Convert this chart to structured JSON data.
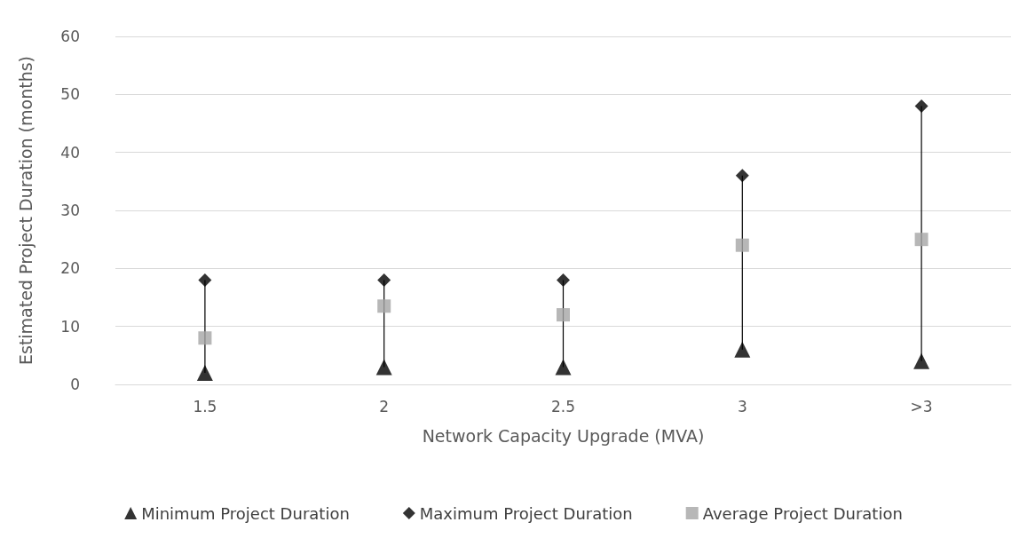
{
  "chart_data": {
    "type": "scatter",
    "xlabel": "Network Capacity Upgrade (MVA)",
    "ylabel": "Estimated Project Duration (months)",
    "categories": [
      "1.5",
      "2",
      "2.5",
      "3",
      ">3"
    ],
    "series": [
      {
        "type": "line",
        "color": "#000000",
        "marker": "none",
        "x": [
          "1.5",
          "1.5"
        ],
        "values": [
          2,
          18
        ]
      },
      {
        "type": "line",
        "color": "#000000",
        "marker": "none",
        "x": [
          "2",
          "2"
        ],
        "values": [
          3,
          18
        ]
      },
      {
        "type": "line",
        "color": "#000000",
        "marker": "none",
        "x": [
          "2.5",
          "2.5"
        ],
        "values": [
          3,
          18
        ]
      },
      {
        "type": "line",
        "color": "#000000",
        "marker": "none",
        "x": [
          "3",
          "3"
        ],
        "values": [
          6,
          36
        ]
      },
      {
        "type": "line",
        "color": "#000000",
        "marker": "none",
        "x": [
          ">3",
          ">3"
        ],
        "values": [
          4,
          48
        ]
      },
      {
        "name": "Minimum Project Duration",
        "color": "#000000",
        "marker": "triangle",
        "values": [
          2,
          3,
          3,
          6,
          4
        ]
      },
      {
        "name": "Maximum Project Duration",
        "color": "#000000",
        "marker": "diamond",
        "values": [
          18,
          18,
          18,
          36,
          48
        ]
      },
      {
        "name": "Average Project Duration",
        "color": "#a5a5a5",
        "marker": "square",
        "values": [
          8,
          13.5,
          12,
          24,
          25
        ]
      }
    ],
    "ylim": [
      0,
      60
    ],
    "yticks": [
      0,
      10,
      20,
      30,
      40,
      50,
      60
    ],
    "grid": "y",
    "legend": "bottom"
  }
}
